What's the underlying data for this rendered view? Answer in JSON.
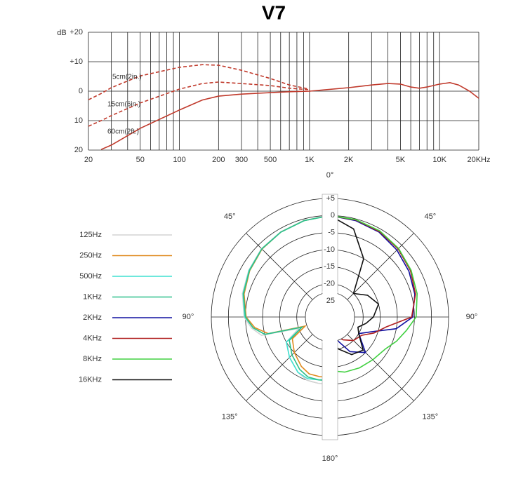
{
  "chart_data": [
    {
      "type": "line",
      "title": "V7",
      "x": [
        20,
        25,
        30,
        50,
        100,
        150,
        200,
        300,
        500,
        700,
        1000,
        2000,
        3000,
        4000,
        5000,
        6000,
        7000,
        8000,
        10000,
        12000,
        14000,
        17000,
        20000
      ],
      "xscale": "log",
      "xlim": [
        20,
        20000
      ],
      "xticks": [
        20,
        50,
        100,
        200,
        300,
        500,
        {
          "value": 1000,
          "label": "1K"
        },
        {
          "value": 2000,
          "label": "2K"
        },
        {
          "value": 5000,
          "label": "5K"
        },
        {
          "value": 10000,
          "label": "10K"
        },
        {
          "value": 20000,
          "label": "20KHz"
        }
      ],
      "minor_xticks": [
        30,
        40,
        60,
        70,
        80,
        90,
        400,
        600,
        700,
        800,
        900,
        3000,
        4000,
        6000,
        7000,
        8000,
        9000
      ],
      "ylabel": "dB",
      "ylim": [
        -20,
        20
      ],
      "yticks": [
        {
          "value": 20,
          "label": "+20"
        },
        {
          "value": 10,
          "label": "+10"
        },
        0,
        {
          "value": -10,
          "label": "10"
        },
        {
          "value": -20,
          "label": "20"
        }
      ],
      "grid": true,
      "series": [
        {
          "name": "5cm(2in.)",
          "color": "#c0392b",
          "dashed": true,
          "values": [
            -2.9,
            -0.8,
            1.2,
            5.2,
            8.1,
            9,
            8.8,
            7.1,
            4.3,
            2.1,
            0.7,
            null,
            null,
            null,
            null,
            null,
            null,
            null,
            null,
            null,
            null,
            null,
            null
          ]
        },
        {
          "name": "15cm(6in.)",
          "color": "#c0392b",
          "dashed": true,
          "values": [
            -11.9,
            -10,
            -8.3,
            -4,
            0.7,
            2.6,
            3.1,
            2.6,
            1.9,
            1,
            0.5,
            null,
            null,
            null,
            null,
            null,
            null,
            null,
            null,
            null,
            null,
            null,
            null
          ]
        },
        {
          "name": "60cm(2ft.)",
          "color": "#c0392b",
          "dashed": false,
          "values": [
            null,
            -19.8,
            -18.3,
            -12.6,
            -6.4,
            -3,
            -1.7,
            -1,
            -0.5,
            -0.2,
            0,
            1.2,
            2.1,
            2.6,
            2.4,
            1.4,
            1,
            1.4,
            2.4,
            2.9,
            2.1,
            0,
            -2.4
          ]
        }
      ]
    },
    {
      "type": "polar",
      "rlim": [
        -25,
        5
      ],
      "rticks": [
        {
          "value": 5,
          "label": "+5"
        },
        0,
        -5,
        -10,
        -15,
        -20,
        {
          "value": -25,
          "label": "25"
        }
      ],
      "angle_ticks": [
        {
          "value": 0,
          "label": "0°"
        },
        {
          "value": 45,
          "label": "45°"
        },
        {
          "value": 90,
          "label": "90°"
        },
        {
          "value": 135,
          "label": "135°"
        },
        {
          "value": 180,
          "label": "180°"
        },
        {
          "value": 225,
          "label": "135°"
        },
        {
          "value": 270,
          "label": "90°"
        },
        {
          "value": 315,
          "label": "45°"
        }
      ],
      "series": [
        {
          "name": "125Hz",
          "color": "#d4d4d4",
          "theta": [
            180,
            190,
            200,
            210,
            225,
            240,
            250,
            255,
            262,
            270,
            285,
            300,
            315,
            330,
            345,
            360
          ],
          "values": [
            -10,
            -10,
            -10,
            -11,
            -13,
            -15,
            -20,
            -9,
            -6.5,
            -4.6,
            -3.2,
            -2.3,
            -1.4,
            -0.9,
            -0.4,
            0
          ]
        },
        {
          "name": "250Hz",
          "color": "#e08a1e",
          "theta": [
            180,
            190,
            200,
            210,
            225,
            240,
            250,
            255,
            262,
            270,
            285,
            300,
            315,
            330,
            345,
            360
          ],
          "values": [
            -12,
            -12,
            -12,
            -13,
            -15,
            -17,
            -22,
            -11,
            -7.5,
            -5.2,
            -3.7,
            -2.6,
            -1.6,
            -1,
            -0.5,
            0
          ]
        },
        {
          "name": "500Hz",
          "color": "#3fe0d0",
          "theta": [
            180,
            190,
            200,
            210,
            225,
            240,
            250,
            255,
            262,
            270,
            285,
            300,
            315,
            330,
            345,
            360
          ],
          "values": [
            -11.5,
            -11,
            -10.5,
            -11,
            -13,
            -15,
            -21,
            -10,
            -7,
            -4.8,
            -3.4,
            -2.4,
            -1.5,
            -1,
            -0.5,
            0
          ]
        },
        {
          "name": "1KHz",
          "color": "#2ec08a",
          "theta": [
            180,
            190,
            200,
            210,
            225,
            240,
            250,
            255,
            262,
            270,
            285,
            300,
            315,
            330,
            345,
            360
          ],
          "values": [
            -11,
            -11,
            -11,
            -12,
            -14,
            -16,
            -21,
            -10,
            -7,
            -5,
            -3.5,
            -2.5,
            -1.5,
            -1,
            -0.5,
            0
          ]
        },
        {
          "name": "2KHz",
          "color": "#1010a0",
          "theta": [
            0,
            15,
            30,
            45,
            60,
            75,
            90,
            100,
            110,
            120,
            135,
            150,
            165,
            180
          ],
          "values": [
            0,
            -0.5,
            -1,
            -2,
            -3,
            -4,
            -5.5,
            -10,
            -17,
            -20,
            -15,
            -18,
            -23,
            -25
          ]
        },
        {
          "name": "4KHz",
          "color": "#b02020",
          "theta": [
            0,
            15,
            30,
            45,
            60,
            75,
            90,
            100,
            110,
            120,
            135,
            150,
            165,
            180
          ],
          "values": [
            0,
            -0.3,
            -0.8,
            -1.5,
            -2.5,
            -3.8,
            -5.8,
            -13,
            -16,
            -19,
            -20,
            -22,
            -24,
            -25
          ]
        },
        {
          "name": "8KHz",
          "color": "#40d040",
          "theta": [
            0,
            15,
            30,
            45,
            60,
            75,
            90,
            100,
            110,
            120,
            135,
            150,
            165,
            180
          ],
          "values": [
            0,
            -0.2,
            -0.6,
            -1.3,
            -2.3,
            -3.3,
            -4.5,
            -7,
            -9,
            -11,
            -12,
            -12.5,
            -13,
            -14
          ]
        },
        {
          "name": "16KHz",
          "color": "#101010",
          "theta": [
            0,
            15,
            30,
            45,
            60,
            75,
            90,
            100,
            110,
            120,
            135,
            150,
            165,
            180
          ],
          "values": [
            0,
            -3,
            -10,
            -20,
            -17,
            -15,
            -17,
            -19,
            -21,
            -20,
            -16,
            -17,
            -20,
            -23
          ]
        }
      ]
    }
  ]
}
